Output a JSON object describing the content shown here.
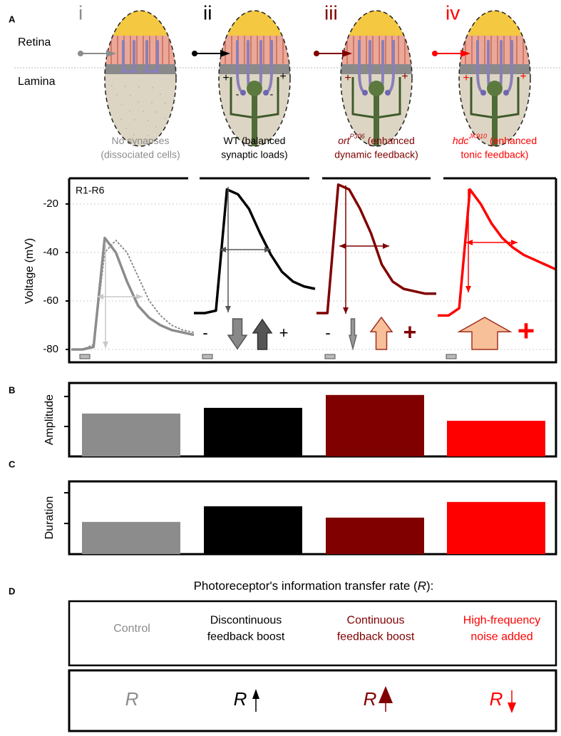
{
  "panel_labels": {
    "a": "A",
    "b": "B",
    "c": "C",
    "d": "D"
  },
  "colors": [
    "#8c8c8c",
    "#000000",
    "#800000",
    "#ff0000"
  ],
  "panel_a": {
    "retina": "Retina",
    "lamina": "Lamina",
    "plus": "+",
    "minus": "-",
    "conditions": [
      {
        "numeral": "i",
        "line1": "No synapses",
        "line2": "(dissociated cells)"
      },
      {
        "numeral": "ii",
        "line1": "WT (balanced",
        "line2": "synaptic loads)"
      },
      {
        "numeral": "iii",
        "gene": "ort",
        "allele": "P306",
        "line1": "(enhanced",
        "line2": "dynamic feedback)"
      },
      {
        "numeral": "iv",
        "gene": "hdc",
        "allele": "JK910",
        "line1": "(enhanced",
        "line2": "tonic feedback)"
      }
    ]
  },
  "voltage": {
    "type": "line",
    "trace_label": "R1-R6",
    "y_label": "Voltage (mV)",
    "plus": "+",
    "minus": "-",
    "ylim": [
      -85.3,
      -9.4
    ],
    "yticks": [
      -20,
      -40,
      -60,
      -80
    ],
    "grid": true,
    "panels": [
      {
        "series": [
          {
            "color": "#8c8c8c",
            "dash": false,
            "values": [
              -80,
              -80,
              -79,
              -34,
              -40,
              -52,
              -62,
              -67,
              -70,
              -72,
              -73,
              -74
            ]
          },
          {
            "color": "#8c8c8c",
            "dash": true,
            "values": [
              -80,
              -80,
              -78,
              -40,
              -35,
              -40,
              -50,
              -60,
              -66,
              -70,
              -72,
              -73
            ]
          }
        ]
      },
      {
        "series": [
          {
            "color": "#000000",
            "dash": false,
            "values": [
              -65,
              -65,
              -64,
              -14,
              -16,
              -22,
              -32,
              -41,
              -48,
              -52,
              -54,
              -55
            ]
          }
        ]
      },
      {
        "series": [
          {
            "color": "#800000",
            "dash": false,
            "values": [
              -65,
              -65,
              -12,
              -14,
              -22,
              -32,
              -45,
              -52,
              -55,
              -56,
              -57,
              -57
            ]
          }
        ]
      },
      {
        "series": [
          {
            "color": "#ff0000",
            "dash": false,
            "values": [
              -66,
              -66,
              -63,
              -14,
              -20,
              -28,
              -34,
              -38,
              -41,
              -43,
              -45,
              -47
            ]
          }
        ]
      }
    ]
  },
  "amplitude": {
    "type": "bar",
    "y_label": "Amplitude",
    "values": [
      1.43,
      1.62,
      2.05,
      1.19
    ],
    "ylim": [
      0,
      2.45
    ],
    "yticks": [
      1,
      2
    ]
  },
  "duration": {
    "type": "bar",
    "y_label": "Duration",
    "values": [
      1.05,
      1.56,
      1.19,
      1.7
    ],
    "ylim": [
      0,
      2.37
    ],
    "yticks": [
      1,
      2
    ]
  },
  "panel_d": {
    "title_before": "Photoreceptor's information transfer rate (",
    "symbol": "R",
    "title_after": "):",
    "columns": [
      {
        "lines": [
          "Control"
        ],
        "arrow": "none"
      },
      {
        "lines": [
          "Discontinuous",
          "feedback boost"
        ],
        "arrow": "up-thin"
      },
      {
        "lines": [
          "Continuous",
          "feedback boost"
        ],
        "arrow": "up-solid"
      },
      {
        "lines": [
          "High-frequency",
          "noise added"
        ],
        "arrow": "down"
      }
    ]
  }
}
